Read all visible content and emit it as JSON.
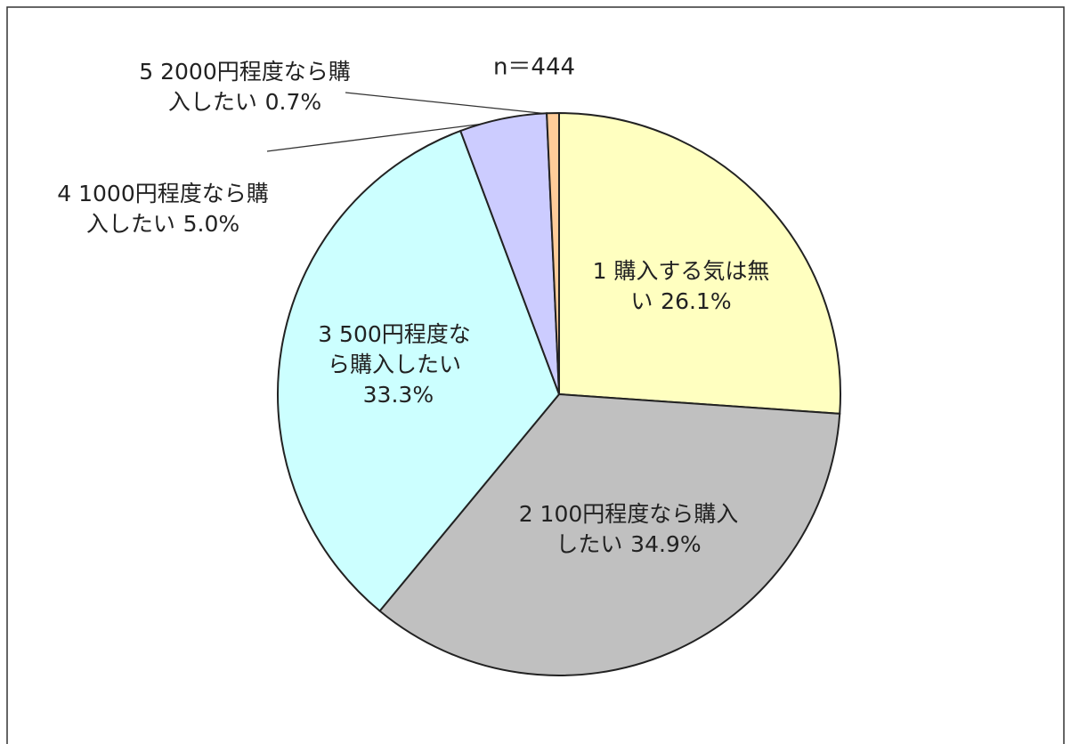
{
  "chart_data": {
    "type": "pie",
    "annotations": [
      "n＝444"
    ],
    "categories": [
      "1 購入する気は無い",
      "2 100円程度なら購入したい",
      "3 500円程度なら購入したい",
      "4 1000円程度なら購入したい",
      "5 2000円程度なら購入したい"
    ],
    "values": [
      26.1,
      34.9,
      33.3,
      5.0,
      0.7
    ],
    "value_labels": [
      "26.1%",
      "34.9%",
      "33.3%",
      "5.0%",
      "0.7%"
    ],
    "colors": [
      "#ffffc0",
      "#c0c0c0",
      "#ccffff",
      "#ccccff",
      "#ffcc99"
    ]
  }
}
